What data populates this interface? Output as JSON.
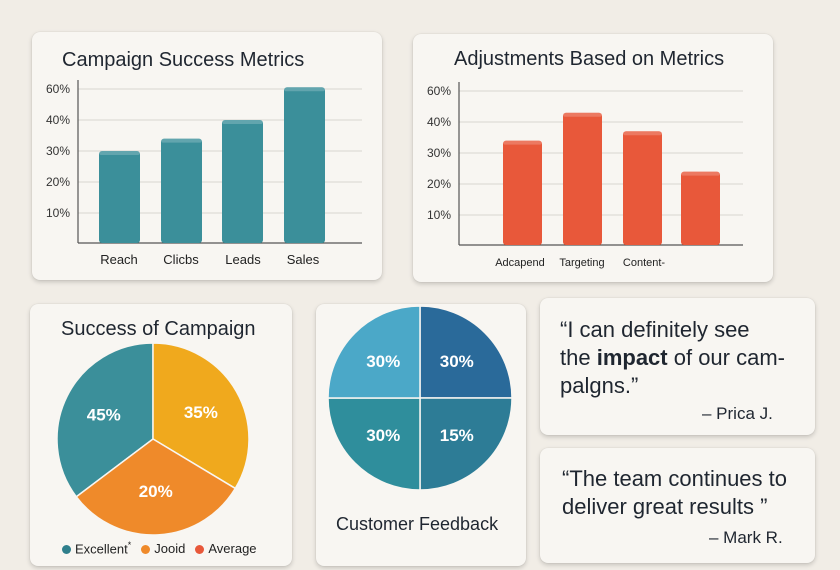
{
  "colors": {
    "teal": "#3b8f9a",
    "orange": "#e8583a",
    "yellow": "#f0a91d",
    "legend_orange": "#ef8a2a",
    "light_blue": "#4ba8c8",
    "dark_blue": "#2a6a9a",
    "mid_teal": "#2f8e9c",
    "blue_teal": "#2d7c96"
  },
  "chart_data": [
    {
      "type": "bar",
      "title": "Campaign Success Metrics",
      "categories": [
        "Reach",
        "Clicbs",
        "Leads",
        "Sales"
      ],
      "values": [
        30,
        34,
        40,
        61
      ],
      "yticks": [
        "60%",
        "40%",
        "30%",
        "20%",
        "10%"
      ],
      "xlabel": "",
      "ylabel": "",
      "grid": true
    },
    {
      "type": "bar",
      "title": "Adjustments Based on Metrics",
      "categories": [
        "Adcapend",
        "Targeting",
        "Content-",
        ""
      ],
      "values": [
        34,
        46,
        37,
        24
      ],
      "yticks": [
        "60%",
        "40%",
        "30%",
        "20%",
        "10%"
      ],
      "xlabel": "",
      "ylabel": "",
      "grid": true
    },
    {
      "type": "pie",
      "title": "Success of Campaign",
      "labels": [
        "45%",
        "35%",
        "20%"
      ],
      "values": [
        45,
        35,
        20
      ],
      "legend": [
        "Excellent",
        "Jooid",
        "Average"
      ],
      "legend_marker": "*"
    },
    {
      "type": "pie",
      "title": "Customer Feedback",
      "labels": [
        "30%",
        "30%",
        "15%",
        "30%"
      ],
      "values": [
        30,
        30,
        15,
        30
      ]
    }
  ],
  "quotes": [
    {
      "line1": "“I can definitely see",
      "line2_pre": "the ",
      "line2_bold": "impact",
      "line2_post": " of our cam-",
      "line3": "palgns.”",
      "author": "– Prica J."
    },
    {
      "line1": "“The team continues to",
      "line2": "deliver great results ”",
      "author": "– Mark R."
    }
  ]
}
